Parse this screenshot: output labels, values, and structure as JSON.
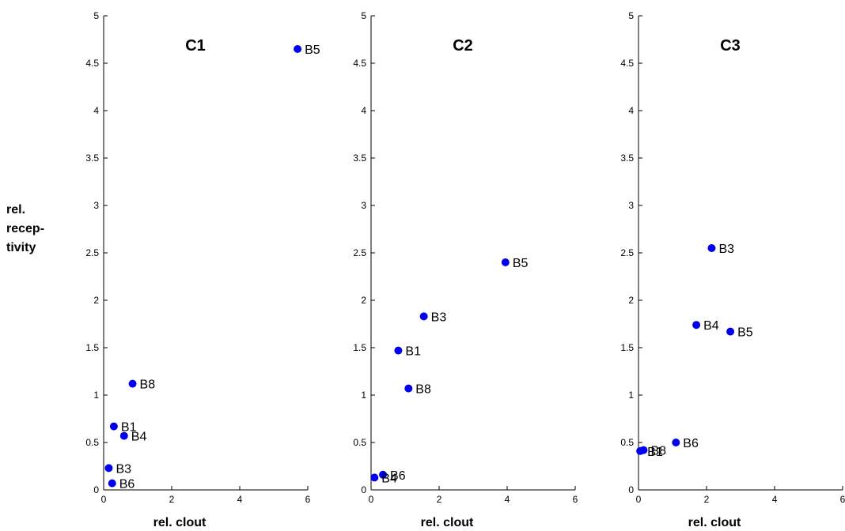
{
  "chart_data": [
    {
      "type": "scatter",
      "title": "C1",
      "xlabel": "rel. clout",
      "ylabel": [
        "rel.",
        "recep-",
        "tivity"
      ],
      "xlim": [
        0,
        6
      ],
      "ylim": [
        0,
        5
      ],
      "xticks": [
        "0",
        "2",
        "4",
        "6"
      ],
      "yticks": [
        "0",
        "0.5",
        "1",
        "1.5",
        "2",
        "2.5",
        "3",
        "3.5",
        "4",
        "4.5",
        "5"
      ],
      "marker_color": "#0000ee",
      "points": [
        {
          "label": "B5",
          "x": 5.7,
          "y": 4.65
        },
        {
          "label": "B8",
          "x": 0.85,
          "y": 1.12
        },
        {
          "label": "B1",
          "x": 0.3,
          "y": 0.67
        },
        {
          "label": "B4",
          "x": 0.6,
          "y": 0.57
        },
        {
          "label": "B3",
          "x": 0.15,
          "y": 0.23
        },
        {
          "label": "B6",
          "x": 0.25,
          "y": 0.07
        }
      ]
    },
    {
      "type": "scatter",
      "title": "C2",
      "xlabel": "rel. clout",
      "xlim": [
        0,
        6
      ],
      "ylim": [
        0,
        5
      ],
      "xticks": [
        "0",
        "2",
        "4",
        "6"
      ],
      "yticks": [
        "0",
        "0.5",
        "1",
        "1.5",
        "2",
        "2.5",
        "3",
        "3.5",
        "4",
        "4.5",
        "5"
      ],
      "marker_color": "#0000ee",
      "points": [
        {
          "label": "B5",
          "x": 3.95,
          "y": 2.4
        },
        {
          "label": "B3",
          "x": 1.55,
          "y": 1.83
        },
        {
          "label": "B1",
          "x": 0.8,
          "y": 1.47
        },
        {
          "label": "B8",
          "x": 1.1,
          "y": 1.07
        },
        {
          "label": "B6",
          "x": 0.35,
          "y": 0.16
        },
        {
          "label": "B4",
          "x": 0.1,
          "y": 0.13
        }
      ]
    },
    {
      "type": "scatter",
      "title": "C3",
      "xlabel": "rel. clout",
      "xlim": [
        0,
        6
      ],
      "ylim": [
        0,
        5
      ],
      "xticks": [
        "0",
        "2",
        "4",
        "6"
      ],
      "yticks": [
        "0",
        "0.5",
        "1",
        "1.5",
        "2",
        "2.5",
        "3",
        "3.5",
        "4",
        "4.5",
        "5"
      ],
      "marker_color": "#0000ee",
      "points": [
        {
          "label": "B3",
          "x": 2.15,
          "y": 2.55
        },
        {
          "label": "B4",
          "x": 1.7,
          "y": 1.74
        },
        {
          "label": "B5",
          "x": 2.7,
          "y": 1.67
        },
        {
          "label": "B6",
          "x": 1.1,
          "y": 0.5
        },
        {
          "label": "B8",
          "x": 0.15,
          "y": 0.42
        },
        {
          "label": "B1",
          "x": 0.05,
          "y": 0.41
        }
      ]
    }
  ]
}
